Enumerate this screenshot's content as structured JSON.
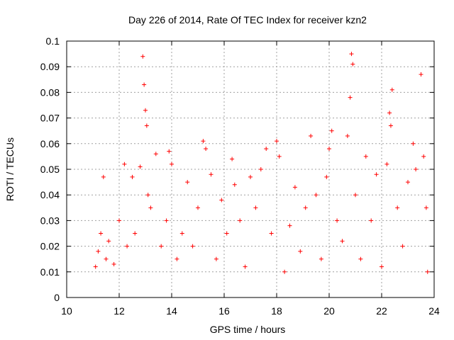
{
  "chart_data": {
    "type": "scatter",
    "title": "Day 226 of 2014, Rate Of TEC Index for receiver kzn2",
    "xlabel": "GPS time / hours",
    "ylabel": "ROTI / TECUs",
    "xlim": [
      10,
      24
    ],
    "ylim": [
      0,
      0.1
    ],
    "x_ticks": [
      10,
      12,
      14,
      16,
      18,
      20,
      22,
      24
    ],
    "y_ticks": [
      0,
      0.01,
      0.02,
      0.03,
      0.04,
      0.05,
      0.06,
      0.07,
      0.08,
      0.09,
      0.1
    ],
    "x_tick_labels": [
      "10",
      "12",
      "14",
      "16",
      "18",
      "20",
      "22",
      "24"
    ],
    "y_tick_labels": [
      "0",
      "0.01",
      "0.02",
      "0.03",
      "0.04",
      "0.05",
      "0.06",
      "0.07",
      "0.08",
      "0.09",
      "0.1"
    ],
    "grid": true,
    "marker": "plus",
    "color": "#ff0000",
    "series": [
      {
        "name": "ROTI",
        "x": [
          11.1,
          11.2,
          11.3,
          11.4,
          11.5,
          11.6,
          11.8,
          12.0,
          12.2,
          12.3,
          12.5,
          12.6,
          12.8,
          12.9,
          12.95,
          13.0,
          13.05,
          13.1,
          13.2,
          13.4,
          13.6,
          13.8,
          13.9,
          14.0,
          14.2,
          14.4,
          14.6,
          14.8,
          15.0,
          15.2,
          15.3,
          15.5,
          15.7,
          15.9,
          16.1,
          16.3,
          16.4,
          16.6,
          16.8,
          17.0,
          17.2,
          17.4,
          17.6,
          17.8,
          18.0,
          18.1,
          18.3,
          18.5,
          18.7,
          18.9,
          19.1,
          19.3,
          19.5,
          19.7,
          19.9,
          20.0,
          20.1,
          20.3,
          20.5,
          20.7,
          20.8,
          20.85,
          20.9,
          21.0,
          21.2,
          21.4,
          21.6,
          21.8,
          22.0,
          22.2,
          22.3,
          22.35,
          22.4,
          22.6,
          22.8,
          23.0,
          23.2,
          23.3,
          23.5,
          23.6,
          23.7,
          23.75
        ],
        "y": [
          0.012,
          0.018,
          0.025,
          0.047,
          0.015,
          0.022,
          0.013,
          0.03,
          0.052,
          0.02,
          0.047,
          0.025,
          0.051,
          0.094,
          0.083,
          0.073,
          0.067,
          0.04,
          0.035,
          0.056,
          0.02,
          0.03,
          0.057,
          0.052,
          0.015,
          0.025,
          0.045,
          0.02,
          0.035,
          0.061,
          0.058,
          0.048,
          0.015,
          0.038,
          0.025,
          0.054,
          0.044,
          0.03,
          0.012,
          0.047,
          0.035,
          0.05,
          0.058,
          0.025,
          0.061,
          0.055,
          0.01,
          0.028,
          0.043,
          0.018,
          0.035,
          0.063,
          0.04,
          0.015,
          0.047,
          0.058,
          0.065,
          0.03,
          0.022,
          0.063,
          0.078,
          0.095,
          0.091,
          0.04,
          0.015,
          0.055,
          0.03,
          0.048,
          0.012,
          0.052,
          0.072,
          0.067,
          0.081,
          0.035,
          0.02,
          0.045,
          0.06,
          0.05,
          0.087,
          0.055,
          0.035,
          0.01
        ]
      }
    ]
  }
}
